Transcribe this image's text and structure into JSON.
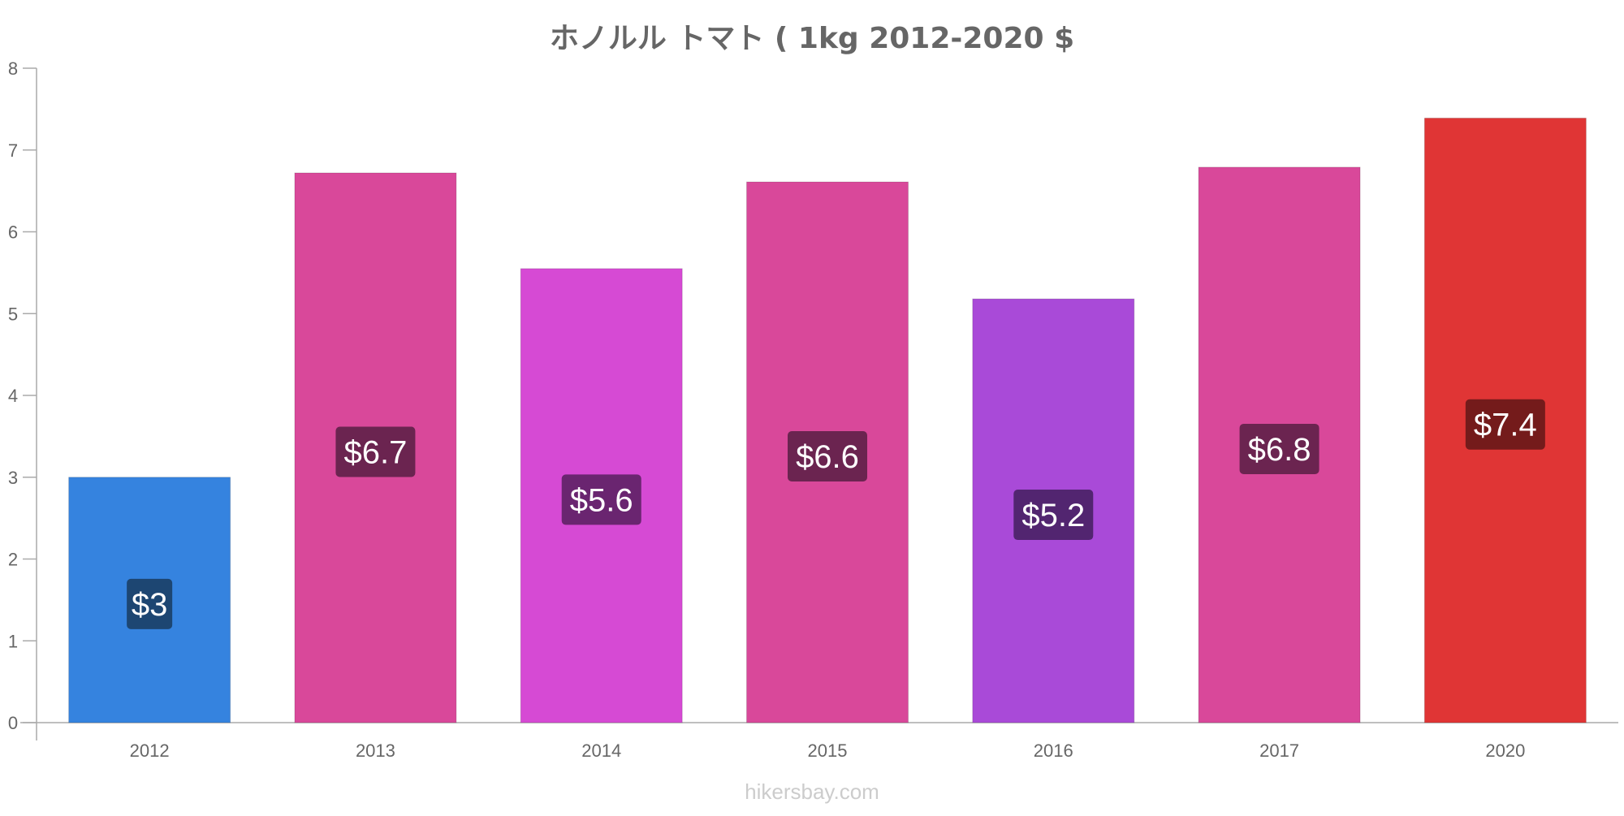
{
  "chart_data": {
    "type": "bar",
    "title": "ホノルル トマト ( 1kg 2012-2020 $",
    "categories": [
      "2012",
      "2013",
      "2014",
      "2015",
      "2016",
      "2017",
      "2020"
    ],
    "values": [
      3.0,
      6.72,
      5.55,
      6.61,
      5.18,
      6.79,
      7.39
    ],
    "data_labels": [
      "$3",
      "$6.7",
      "$5.6",
      "$6.6",
      "$5.2",
      "$6.8",
      "$7.4"
    ],
    "bar_colors": [
      "#3583df",
      "#d9489a",
      "#d64ad4",
      "#d9489a",
      "#a94ad8",
      "#d9489a",
      "#e03535"
    ],
    "label_bg_colors": [
      "#1d4672",
      "#6b2450",
      "#6a2570",
      "#6b2450",
      "#522570",
      "#6b2450",
      "#741b1b"
    ],
    "yticks": [
      "0",
      "1",
      "2",
      "3",
      "4",
      "5",
      "6",
      "7",
      "8"
    ],
    "ylim": [
      0,
      8
    ],
    "xlabel": "",
    "ylabel": "",
    "grid": false
  },
  "watermark": "hikersbay.com"
}
